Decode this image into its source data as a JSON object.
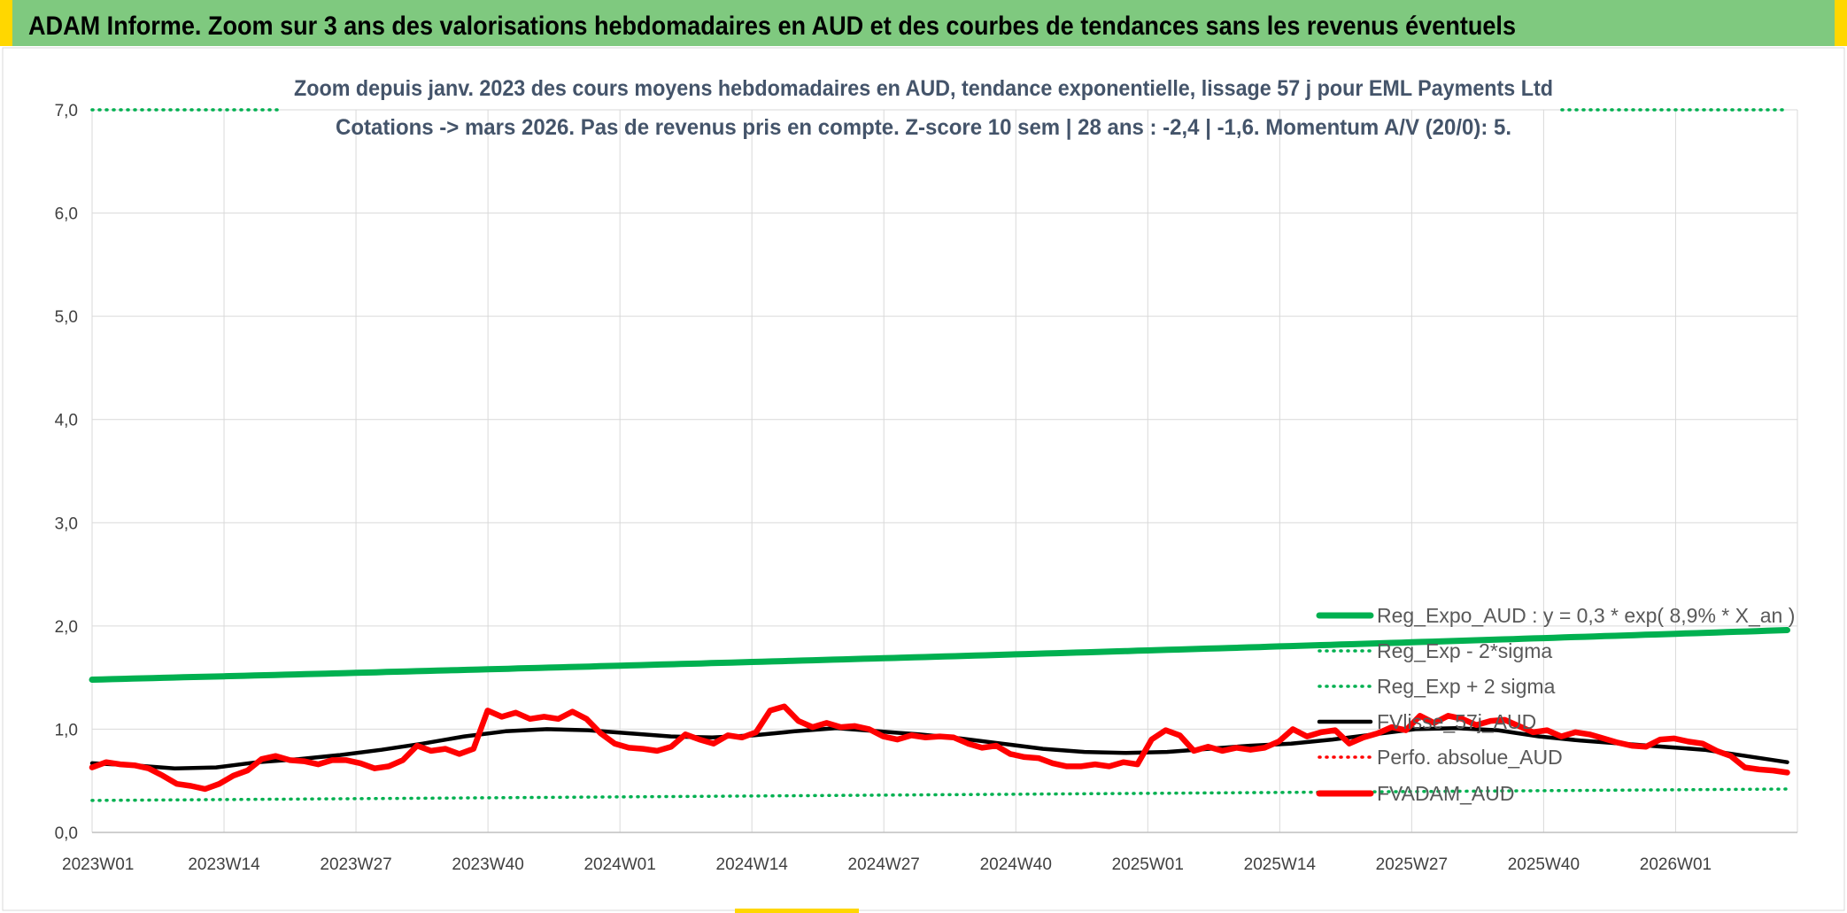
{
  "banner": {
    "title": "ADAM Informe. Zoom sur 3 ans des valorisations hebdomadaires en AUD et des courbes de tendances sans les revenus éventuels"
  },
  "colors": {
    "banner": "#7fc97f",
    "banner_edge": "#ffd700",
    "regression": "#00b050",
    "price": "#ff0000",
    "smoothed": "#000000",
    "grid": "#d9d9d9"
  },
  "chart_data": {
    "type": "line",
    "title": "Zoom depuis janv. 2023 des cours moyens hebdomadaires en AUD, tendance exponentielle, lissage 57 j pour EML Payments Ltd",
    "subtitle": "Cotations -> mars 2026. Pas de revenus pris en compte. Z-score 10 sem | 28 ans : -2,4 | -1,6. Momentum A/V (20/0): 5.",
    "ylim": [
      0,
      7
    ],
    "y_ticks": [
      "0,0",
      "1,0",
      "2,0",
      "3,0",
      "4,0",
      "5,0",
      "6,0",
      "7,0"
    ],
    "x_range": [
      "2023W01",
      "2026W12"
    ],
    "x_ticks": [
      "2023W01",
      "2023W14",
      "2023W27",
      "2023W40",
      "2024W01",
      "2024W14",
      "2024W27",
      "2024W40",
      "2025W01",
      "2025W14",
      "2025W27",
      "2025W40",
      "2026W01"
    ],
    "grid": true,
    "legend_position": "lower-right",
    "regression_formula": {
      "a": 0.3,
      "rate": 0.089
    },
    "series": [
      {
        "name": "Reg_Expo_AUD : y = 0,3 * exp( 8,9% *  X_an )",
        "style": "thick-solid",
        "color": "#00b050",
        "start": 1.48,
        "end": 1.96
      },
      {
        "name": "Reg_Exp - 2*sigma",
        "style": "dotted",
        "color": "#00b050",
        "values": [
          [
            0,
            0.31
          ],
          [
            167,
            0.42
          ]
        ]
      },
      {
        "name": "Reg_Exp + 2 sigma",
        "style": "dotted",
        "color": "#00b050",
        "values": [
          [
            0,
            7.0
          ],
          [
            167,
            7.0
          ]
        ]
      },
      {
        "name": "FVlisse_57j_AUD",
        "style": "solid",
        "color": "#000000",
        "values": [
          [
            0,
            0.67
          ],
          [
            5,
            0.65
          ],
          [
            10,
            0.62
          ],
          [
            15,
            0.63
          ],
          [
            20,
            0.68
          ],
          [
            25,
            0.71
          ],
          [
            30,
            0.75
          ],
          [
            35,
            0.8
          ],
          [
            40,
            0.86
          ],
          [
            45,
            0.93
          ],
          [
            50,
            0.98
          ],
          [
            55,
            1.0
          ],
          [
            60,
            0.99
          ],
          [
            65,
            0.96
          ],
          [
            70,
            0.93
          ],
          [
            75,
            0.92
          ],
          [
            80,
            0.94
          ],
          [
            85,
            0.98
          ],
          [
            90,
            1.01
          ],
          [
            95,
            0.98
          ],
          [
            100,
            0.95
          ],
          [
            105,
            0.91
          ],
          [
            110,
            0.86
          ],
          [
            115,
            0.81
          ],
          [
            120,
            0.78
          ],
          [
            125,
            0.77
          ],
          [
            130,
            0.78
          ],
          [
            135,
            0.81
          ],
          [
            140,
            0.84
          ],
          [
            145,
            0.86
          ],
          [
            150,
            0.9
          ],
          [
            155,
            0.95
          ],
          [
            160,
            1.0
          ],
          [
            165,
            1.01
          ],
          [
            170,
            0.99
          ],
          [
            175,
            0.93
          ],
          [
            180,
            0.89
          ],
          [
            185,
            0.86
          ],
          [
            190,
            0.83
          ],
          [
            195,
            0.8
          ],
          [
            200,
            0.74
          ],
          [
            205,
            0.68
          ]
        ]
      },
      {
        "name": "Perfo. absolue_AUD",
        "style": "dotted",
        "color": "#ff0000",
        "values": []
      },
      {
        "name": "FVADAM_AUD",
        "style": "thick-solid",
        "color": "#ff0000",
        "values": [
          [
            0,
            0.63
          ],
          [
            2,
            0.68
          ],
          [
            4,
            0.66
          ],
          [
            6,
            0.65
          ],
          [
            8,
            0.62
          ],
          [
            10,
            0.55
          ],
          [
            12,
            0.47
          ],
          [
            14,
            0.45
          ],
          [
            16,
            0.42
          ],
          [
            18,
            0.47
          ],
          [
            20,
            0.55
          ],
          [
            22,
            0.6
          ],
          [
            24,
            0.71
          ],
          [
            26,
            0.74
          ],
          [
            28,
            0.7
          ],
          [
            30,
            0.69
          ],
          [
            32,
            0.66
          ],
          [
            34,
            0.7
          ],
          [
            36,
            0.7
          ],
          [
            38,
            0.67
          ],
          [
            40,
            0.62
          ],
          [
            42,
            0.64
          ],
          [
            44,
            0.7
          ],
          [
            46,
            0.84
          ],
          [
            48,
            0.79
          ],
          [
            50,
            0.81
          ],
          [
            52,
            0.76
          ],
          [
            54,
            0.81
          ],
          [
            56,
            1.18
          ],
          [
            58,
            1.12
          ],
          [
            60,
            1.16
          ],
          [
            62,
            1.1
          ],
          [
            64,
            1.12
          ],
          [
            66,
            1.1
          ],
          [
            68,
            1.17
          ],
          [
            70,
            1.1
          ],
          [
            72,
            0.96
          ],
          [
            74,
            0.86
          ],
          [
            76,
            0.82
          ],
          [
            78,
            0.81
          ],
          [
            80,
            0.79
          ],
          [
            82,
            0.83
          ],
          [
            84,
            0.95
          ],
          [
            86,
            0.9
          ],
          [
            88,
            0.86
          ],
          [
            90,
            0.94
          ],
          [
            92,
            0.92
          ],
          [
            94,
            0.97
          ],
          [
            96,
            1.18
          ],
          [
            98,
            1.22
          ],
          [
            100,
            1.08
          ],
          [
            102,
            1.02
          ],
          [
            104,
            1.06
          ],
          [
            106,
            1.02
          ],
          [
            108,
            1.03
          ],
          [
            110,
            1.0
          ],
          [
            112,
            0.93
          ],
          [
            114,
            0.9
          ],
          [
            116,
            0.94
          ],
          [
            118,
            0.92
          ],
          [
            120,
            0.93
          ],
          [
            122,
            0.92
          ],
          [
            124,
            0.86
          ],
          [
            126,
            0.82
          ],
          [
            128,
            0.84
          ],
          [
            130,
            0.76
          ],
          [
            132,
            0.73
          ],
          [
            134,
            0.72
          ],
          [
            136,
            0.67
          ],
          [
            138,
            0.64
          ],
          [
            140,
            0.64
          ],
          [
            142,
            0.66
          ],
          [
            144,
            0.64
          ],
          [
            146,
            0.68
          ],
          [
            148,
            0.66
          ],
          [
            150,
            0.9
          ],
          [
            152,
            0.99
          ],
          [
            154,
            0.94
          ],
          [
            156,
            0.79
          ],
          [
            158,
            0.83
          ],
          [
            160,
            0.79
          ],
          [
            162,
            0.82
          ],
          [
            164,
            0.8
          ],
          [
            166,
            0.82
          ],
          [
            168,
            0.88
          ],
          [
            170,
            1.0
          ],
          [
            172,
            0.93
          ],
          [
            174,
            0.97
          ],
          [
            176,
            0.99
          ],
          [
            178,
            0.86
          ],
          [
            180,
            0.92
          ],
          [
            182,
            0.96
          ],
          [
            184,
            1.02
          ],
          [
            186,
            0.99
          ],
          [
            188,
            1.13
          ],
          [
            190,
            1.06
          ],
          [
            192,
            1.13
          ],
          [
            194,
            1.1
          ],
          [
            196,
            1.04
          ],
          [
            198,
            1.08
          ],
          [
            200,
            1.09
          ],
          [
            202,
            1.03
          ],
          [
            204,
            0.97
          ],
          [
            206,
            0.99
          ],
          [
            208,
            0.93
          ],
          [
            210,
            0.97
          ],
          [
            212,
            0.95
          ],
          [
            214,
            0.91
          ],
          [
            216,
            0.87
          ],
          [
            218,
            0.84
          ],
          [
            220,
            0.83
          ],
          [
            222,
            0.9
          ],
          [
            224,
            0.91
          ],
          [
            226,
            0.88
          ],
          [
            228,
            0.86
          ],
          [
            230,
            0.79
          ],
          [
            232,
            0.74
          ],
          [
            234,
            0.63
          ],
          [
            236,
            0.61
          ],
          [
            238,
            0.6
          ],
          [
            240,
            0.58
          ]
        ]
      }
    ]
  }
}
